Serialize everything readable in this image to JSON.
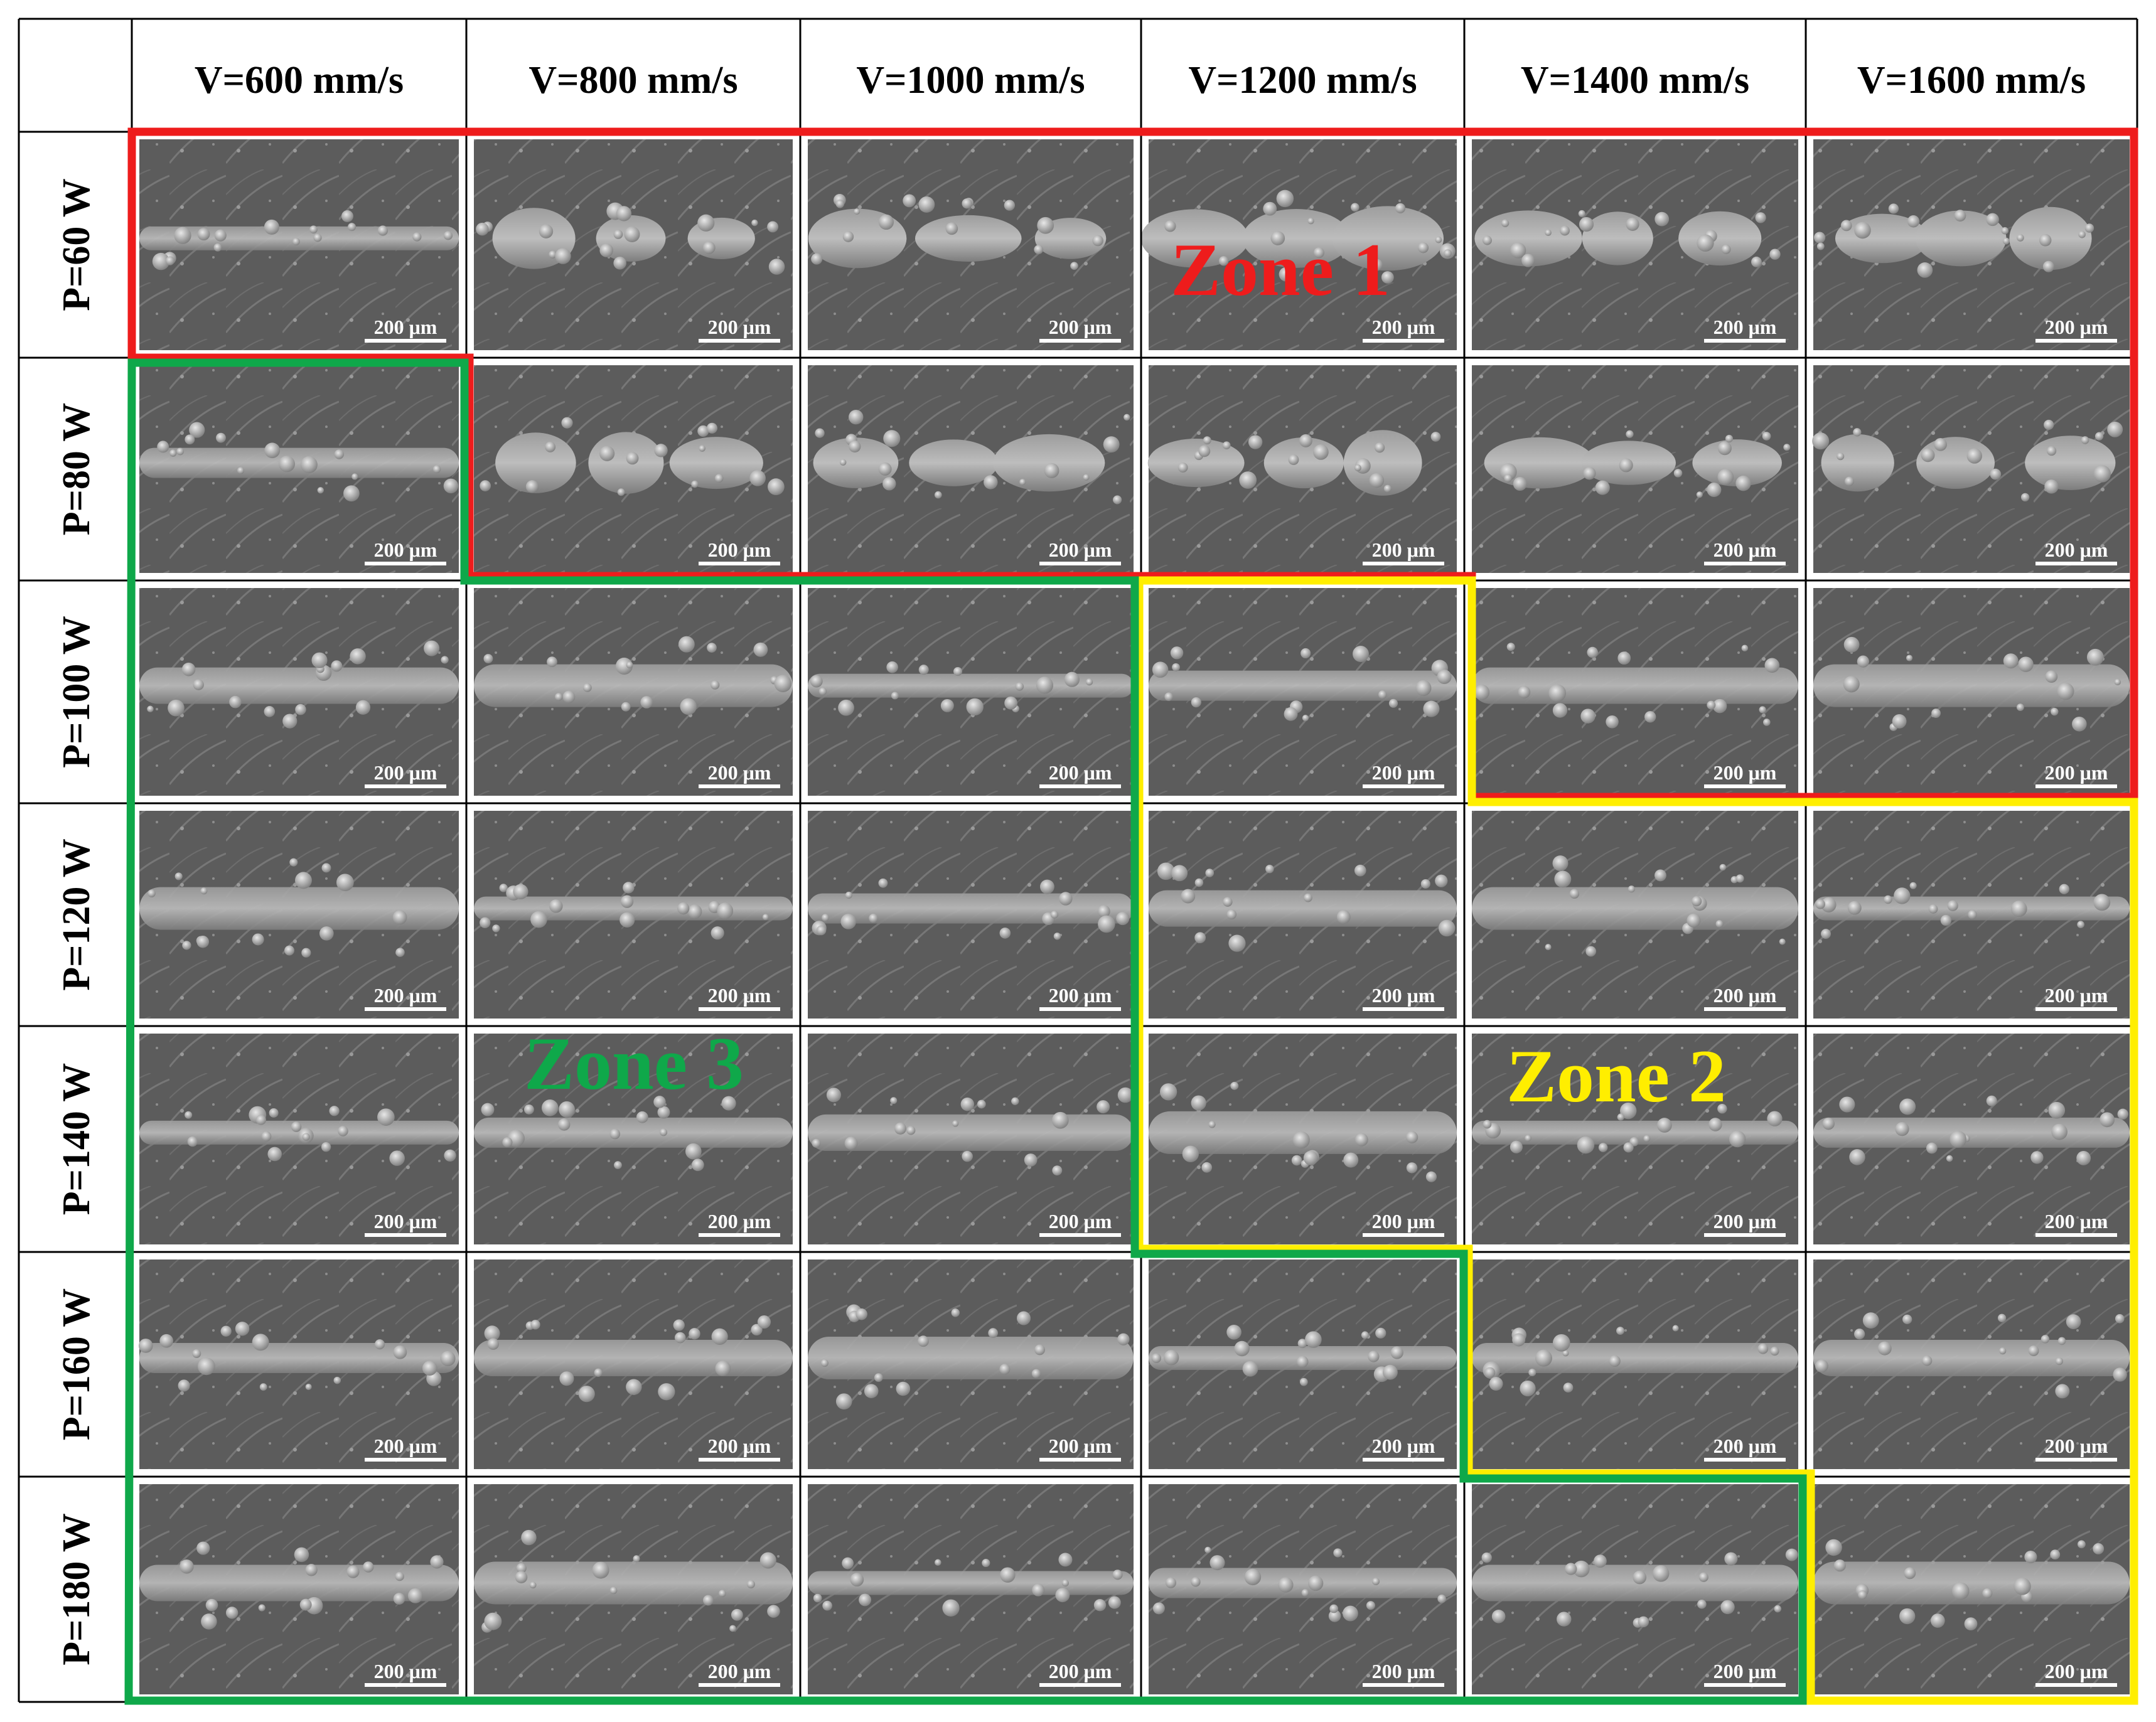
{
  "columns": [
    "V=600 mm/s",
    "V=800 mm/s",
    "V=1000 mm/s",
    "V=1200 mm/s",
    "V=1400 mm/s",
    "V=1600 mm/s"
  ],
  "rows": [
    "P=60 W",
    "P=80 W",
    "P=100 W",
    "P=120 W",
    "P=140 W",
    "P=160 W",
    "P=180 W"
  ],
  "scale_bar": "200 μm",
  "zones": {
    "zone1": {
      "label": "Zone 1",
      "color": "#ee1c1c"
    },
    "zone2": {
      "label": "Zone 2",
      "color": "#ffee00"
    },
    "zone3": {
      "label": "Zone 3",
      "color": "#0fa84a"
    }
  },
  "grid_color": "#000000",
  "sem_background": "#5f5f5f"
}
